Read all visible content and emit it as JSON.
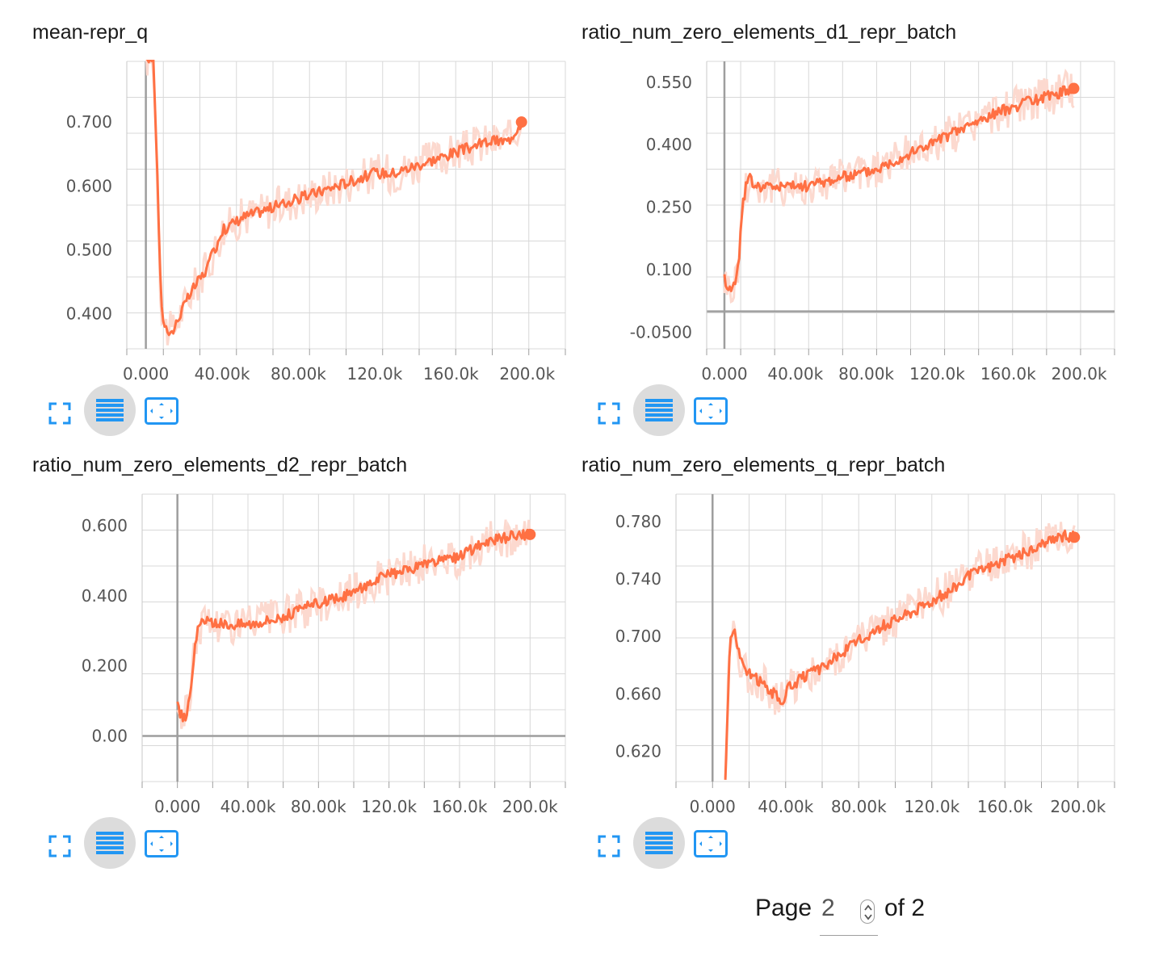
{
  "charts": [
    {
      "title": "mean-repr_q",
      "x_ticks": [
        "0.000",
        "40.00k",
        "80.00k",
        "120.0k",
        "160.0k",
        "200.0k"
      ],
      "y_ticks": [
        "0.400",
        "0.500",
        "0.600",
        "0.700"
      ]
    },
    {
      "title": "ratio_num_zero_elements_d1_repr_batch",
      "x_ticks": [
        "0.000",
        "40.00k",
        "80.00k",
        "120.0k",
        "160.0k",
        "200.0k"
      ],
      "y_ticks": [
        "-0.0500",
        "0.100",
        "0.250",
        "0.400",
        "0.550"
      ]
    },
    {
      "title": "ratio_num_zero_elements_d2_repr_batch",
      "x_ticks": [
        "0.000",
        "40.00k",
        "80.00k",
        "120.0k",
        "160.0k",
        "200.0k"
      ],
      "y_ticks": [
        "0.00",
        "0.200",
        "0.400",
        "0.600"
      ]
    },
    {
      "title": "ratio_num_zero_elements_q_repr_batch",
      "x_ticks": [
        "0.000",
        "40.00k",
        "80.00k",
        "120.0k",
        "160.0k",
        "200.0k"
      ],
      "y_ticks": [
        "0.620",
        "0.660",
        "0.700",
        "0.740",
        "0.780"
      ]
    }
  ],
  "chart_data": [
    {
      "type": "line",
      "title": "mean-repr_q",
      "xlim": [
        -10000,
        220000
      ],
      "ylim": [
        0.345,
        0.795
      ],
      "x": [
        0,
        4000,
        6000,
        8000,
        10000,
        14000,
        18000,
        25000,
        32000,
        40000,
        50000,
        60000,
        70000,
        80000,
        90000,
        100000,
        110000,
        120000,
        130000,
        140000,
        150000,
        160000,
        170000,
        180000,
        190000,
        197000
      ],
      "series": [
        {
          "values": [
            0.8,
            0.8,
            0.62,
            0.41,
            0.38,
            0.37,
            0.4,
            0.44,
            0.47,
            0.53,
            0.55,
            0.56,
            0.57,
            0.58,
            0.59,
            0.6,
            0.61,
            0.62,
            0.62,
            0.63,
            0.64,
            0.65,
            0.66,
            0.67,
            0.67,
            0.7
          ]
        }
      ],
      "color": "#ff7043",
      "raw_color": "#fcd9cf"
    },
    {
      "type": "line",
      "title": "ratio_num_zero_elements_d1_repr_batch",
      "xlim": [
        -10000,
        220000
      ],
      "ylim": [
        -0.09,
        0.6
      ],
      "x": [
        0,
        2000,
        4000,
        6000,
        8000,
        10000,
        12000,
        14000,
        18000,
        25000,
        35000,
        45000,
        55000,
        65000,
        75000,
        85000,
        95000,
        110000,
        125000,
        140000,
        155000,
        170000,
        185000,
        197000
      ],
      "series": [
        {
          "values": [
            0.08,
            0.06,
            0.05,
            0.07,
            0.12,
            0.24,
            0.3,
            0.32,
            0.3,
            0.3,
            0.3,
            0.3,
            0.31,
            0.32,
            0.33,
            0.34,
            0.36,
            0.39,
            0.42,
            0.45,
            0.48,
            0.5,
            0.52,
            0.535
          ]
        }
      ],
      "color": "#ff7043",
      "raw_color": "#fcd9cf"
    },
    {
      "type": "line",
      "title": "ratio_num_zero_elements_d2_repr_batch",
      "xlim": [
        -20000,
        220000
      ],
      "ylim": [
        -0.13,
        0.69
      ],
      "x": [
        0,
        2000,
        4000,
        6000,
        8000,
        10000,
        12000,
        15000,
        20000,
        30000,
        40000,
        50000,
        60000,
        70000,
        80000,
        90000,
        100000,
        110000,
        120000,
        130000,
        140000,
        150000,
        160000,
        170000,
        180000,
        190000,
        200000
      ],
      "series": [
        {
          "values": [
            0.09,
            0.06,
            0.05,
            0.08,
            0.16,
            0.26,
            0.31,
            0.33,
            0.32,
            0.32,
            0.32,
            0.33,
            0.34,
            0.36,
            0.38,
            0.39,
            0.41,
            0.44,
            0.46,
            0.47,
            0.49,
            0.5,
            0.51,
            0.54,
            0.56,
            0.57,
            0.575
          ]
        }
      ],
      "color": "#ff7043",
      "raw_color": "#fcd9cf"
    },
    {
      "type": "line",
      "title": "ratio_num_zero_elements_q_repr_batch",
      "xlim": [
        -20000,
        220000
      ],
      "ylim": [
        0.599,
        0.799
      ],
      "x": [
        7000,
        8000,
        9000,
        10000,
        12000,
        14000,
        18000,
        25000,
        32000,
        38000,
        42000,
        50000,
        60000,
        70000,
        80000,
        90000,
        100000,
        110000,
        120000,
        130000,
        140000,
        150000,
        160000,
        170000,
        180000,
        190000,
        198000
      ],
      "series": [
        {
          "values": [
            0.599,
            0.64,
            0.68,
            0.7,
            0.705,
            0.69,
            0.675,
            0.67,
            0.662,
            0.655,
            0.665,
            0.672,
            0.678,
            0.688,
            0.697,
            0.705,
            0.712,
            0.718,
            0.725,
            0.732,
            0.742,
            0.748,
            0.753,
            0.758,
            0.763,
            0.77,
            0.769
          ]
        }
      ],
      "color": "#ff7043",
      "raw_color": "#fcd9cf"
    }
  ],
  "toolbar": {
    "buttons": [
      {
        "name": "fullscreen-icon",
        "active": false
      },
      {
        "name": "list-icon",
        "active": true
      },
      {
        "name": "fit-domain-icon",
        "active": false
      }
    ],
    "icon_color": "#2196f3"
  },
  "pagination": {
    "label_before": "Page",
    "current_page": "2",
    "label_after": "of 2"
  }
}
